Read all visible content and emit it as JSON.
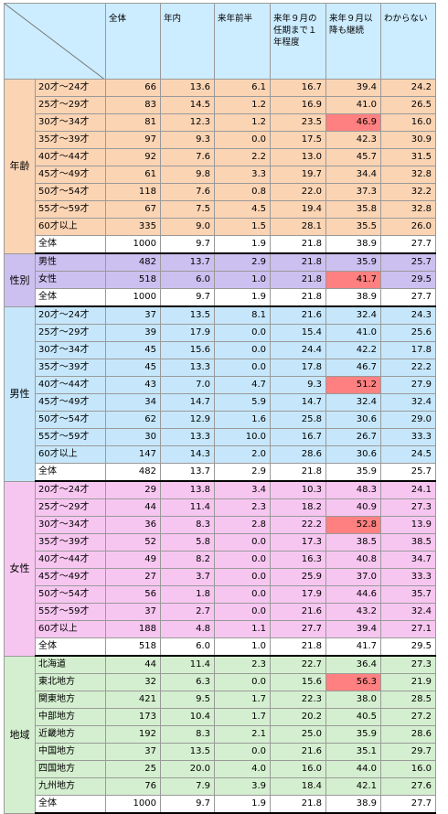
{
  "header": {
    "cols": [
      "全体",
      "年内",
      "来年前半",
      "来年９月の任期まで１年程度",
      "来年９月以降も継続",
      "わからない"
    ]
  },
  "sections": [
    {
      "key": "nenrei",
      "label": "年齢",
      "rows": [
        {
          "label": "20才〜24才",
          "values": [
            "66",
            "13.6",
            "6.1",
            "16.7",
            "39.4",
            "24.2"
          ]
        },
        {
          "label": "25才〜29才",
          "values": [
            "83",
            "14.5",
            "1.2",
            "16.9",
            "41.0",
            "26.5"
          ]
        },
        {
          "label": "30才〜34才",
          "values": [
            "81",
            "12.3",
            "1.2",
            "23.5",
            "46.9",
            "16.0"
          ],
          "hl": 4
        },
        {
          "label": "35才〜39才",
          "values": [
            "97",
            "9.3",
            "0.0",
            "17.5",
            "42.3",
            "30.9"
          ]
        },
        {
          "label": "40才〜44才",
          "values": [
            "92",
            "7.6",
            "2.2",
            "13.0",
            "45.7",
            "31.5"
          ]
        },
        {
          "label": "45才〜49才",
          "values": [
            "61",
            "9.8",
            "3.3",
            "19.7",
            "34.4",
            "32.8"
          ]
        },
        {
          "label": "50才〜54才",
          "values": [
            "118",
            "7.6",
            "0.8",
            "22.0",
            "37.3",
            "32.2"
          ]
        },
        {
          "label": "55才〜59才",
          "values": [
            "67",
            "7.5",
            "4.5",
            "19.4",
            "35.8",
            "32.8"
          ]
        },
        {
          "label": "60才以上",
          "values": [
            "335",
            "9.0",
            "1.5",
            "28.1",
            "35.5",
            "26.0"
          ]
        }
      ],
      "total": {
        "label": "全体",
        "values": [
          "1000",
          "9.7",
          "1.9",
          "21.8",
          "38.9",
          "27.7"
        ]
      }
    },
    {
      "key": "seibetsu",
      "label": "性別",
      "rows": [
        {
          "label": "男性",
          "values": [
            "482",
            "13.7",
            "2.9",
            "21.8",
            "35.9",
            "25.7"
          ]
        },
        {
          "label": "女性",
          "values": [
            "518",
            "6.0",
            "1.0",
            "21.8",
            "41.7",
            "29.5"
          ],
          "hl": 4
        }
      ],
      "total": {
        "label": "全体",
        "values": [
          "1000",
          "9.7",
          "1.9",
          "21.8",
          "38.9",
          "27.7"
        ]
      }
    },
    {
      "key": "dansei",
      "label": "男性",
      "rows": [
        {
          "label": "20才〜24才",
          "values": [
            "37",
            "13.5",
            "8.1",
            "21.6",
            "32.4",
            "24.3"
          ]
        },
        {
          "label": "25才〜29才",
          "values": [
            "39",
            "17.9",
            "0.0",
            "15.4",
            "41.0",
            "25.6"
          ]
        },
        {
          "label": "30才〜34才",
          "values": [
            "45",
            "15.6",
            "0.0",
            "24.4",
            "42.2",
            "17.8"
          ]
        },
        {
          "label": "35才〜39才",
          "values": [
            "45",
            "13.3",
            "0.0",
            "17.8",
            "46.7",
            "22.2"
          ]
        },
        {
          "label": "40才〜44才",
          "values": [
            "43",
            "7.0",
            "4.7",
            "9.3",
            "51.2",
            "27.9"
          ],
          "hl": 4
        },
        {
          "label": "45才〜49才",
          "values": [
            "34",
            "14.7",
            "5.9",
            "14.7",
            "32.4",
            "32.4"
          ]
        },
        {
          "label": "50才〜54才",
          "values": [
            "62",
            "12.9",
            "1.6",
            "25.8",
            "30.6",
            "29.0"
          ]
        },
        {
          "label": "55才〜59才",
          "values": [
            "30",
            "13.3",
            "10.0",
            "16.7",
            "26.7",
            "33.3"
          ]
        },
        {
          "label": "60才以上",
          "values": [
            "147",
            "14.3",
            "2.0",
            "28.6",
            "30.6",
            "24.5"
          ]
        }
      ],
      "total": {
        "label": "全体",
        "values": [
          "482",
          "13.7",
          "2.9",
          "21.8",
          "35.9",
          "25.7"
        ]
      }
    },
    {
      "key": "josei",
      "label": "女性",
      "rows": [
        {
          "label": "20才〜24才",
          "values": [
            "29",
            "13.8",
            "3.4",
            "10.3",
            "48.3",
            "24.1"
          ]
        },
        {
          "label": "25才〜29才",
          "values": [
            "44",
            "11.4",
            "2.3",
            "18.2",
            "40.9",
            "27.3"
          ]
        },
        {
          "label": "30才〜34才",
          "values": [
            "36",
            "8.3",
            "2.8",
            "22.2",
            "52.8",
            "13.9"
          ],
          "hl": 4
        },
        {
          "label": "35才〜39才",
          "values": [
            "52",
            "5.8",
            "0.0",
            "17.3",
            "38.5",
            "38.5"
          ]
        },
        {
          "label": "40才〜44才",
          "values": [
            "49",
            "8.2",
            "0.0",
            "16.3",
            "40.8",
            "34.7"
          ]
        },
        {
          "label": "45才〜49才",
          "values": [
            "27",
            "3.7",
            "0.0",
            "25.9",
            "37.0",
            "33.3"
          ]
        },
        {
          "label": "50才〜54才",
          "values": [
            "56",
            "1.8",
            "0.0",
            "17.9",
            "44.6",
            "35.7"
          ]
        },
        {
          "label": "55才〜59才",
          "values": [
            "37",
            "2.7",
            "0.0",
            "21.6",
            "43.2",
            "32.4"
          ]
        },
        {
          "label": "60才以上",
          "values": [
            "188",
            "4.8",
            "1.1",
            "27.7",
            "39.4",
            "27.1"
          ]
        }
      ],
      "total": {
        "label": "全体",
        "values": [
          "518",
          "6.0",
          "1.0",
          "21.8",
          "41.7",
          "29.5"
        ]
      }
    },
    {
      "key": "chiiki",
      "label": "地域",
      "rows": [
        {
          "label": "北海道",
          "values": [
            "44",
            "11.4",
            "2.3",
            "22.7",
            "36.4",
            "27.3"
          ]
        },
        {
          "label": "東北地方",
          "values": [
            "32",
            "6.3",
            "0.0",
            "15.6",
            "56.3",
            "21.9"
          ],
          "hl": 4
        },
        {
          "label": "関東地方",
          "values": [
            "421",
            "9.5",
            "1.7",
            "22.3",
            "38.0",
            "28.5"
          ]
        },
        {
          "label": "中部地方",
          "values": [
            "173",
            "10.4",
            "1.7",
            "20.2",
            "40.5",
            "27.2"
          ]
        },
        {
          "label": "近畿地方",
          "values": [
            "192",
            "8.3",
            "2.1",
            "25.0",
            "35.9",
            "28.6"
          ]
        },
        {
          "label": "中国地方",
          "values": [
            "37",
            "13.5",
            "0.0",
            "21.6",
            "35.1",
            "29.7"
          ]
        },
        {
          "label": "四国地方",
          "values": [
            "25",
            "20.0",
            "4.0",
            "16.0",
            "44.0",
            "16.0"
          ]
        },
        {
          "label": "九州地方",
          "values": [
            "76",
            "7.9",
            "3.9",
            "18.4",
            "42.1",
            "27.6"
          ]
        }
      ],
      "total": {
        "label": "全体",
        "values": [
          "1000",
          "9.7",
          "1.9",
          "21.8",
          "38.9",
          "27.7"
        ]
      }
    }
  ]
}
